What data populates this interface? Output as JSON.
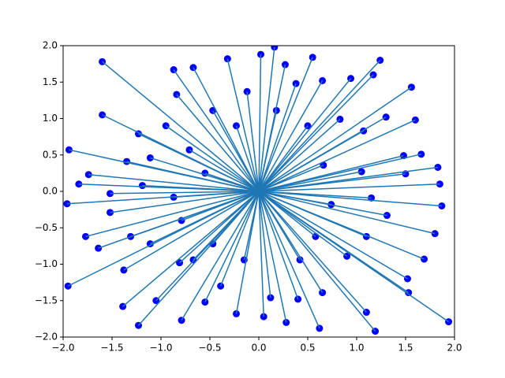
{
  "chart_data": {
    "type": "scatter",
    "x": [
      -1.6,
      -1.6,
      -1.94,
      -1.96,
      -1.95,
      -1.39,
      -1.23,
      -0.79,
      -1.05,
      -0.55,
      -0.23,
      0.02,
      0.16,
      0.27,
      0.55,
      1.24,
      1.56,
      1.6,
      1.83,
      1.85,
      1.87,
      1.8,
      1.69,
      1.52,
      1.53,
      1.94,
      1.19,
      1.1,
      0.62,
      0.28,
      0.05,
      -0.39,
      -0.81,
      -1.38,
      -1.64,
      -1.77,
      -1.84,
      -1.74,
      -1.35,
      -1.23,
      -0.95,
      -0.87,
      -0.67,
      -0.84,
      -0.32,
      -0.12,
      0.38,
      0.65,
      0.94,
      1.17,
      1.3,
      1.07,
      0.83,
      1.05,
      1.48,
      1.66,
      1.5,
      1.15,
      1.31,
      1.1,
      0.9,
      0.65,
      0.4,
      0.12,
      -0.67,
      -1.11,
      -1.31,
      -1.52,
      -1.52,
      -1.19,
      -1.11,
      -0.71,
      -0.47,
      -0.23,
      0.18,
      0.5,
      0.66,
      0.74,
      0.58,
      0.42,
      -0.15,
      -0.47,
      -0.79,
      -0.87,
      -0.55
    ],
    "y": [
      1.78,
      1.05,
      0.57,
      -0.17,
      -1.3,
      -1.58,
      -1.84,
      -1.77,
      -1.5,
      -1.52,
      -1.68,
      1.88,
      1.98,
      1.74,
      1.84,
      1.8,
      1.43,
      0.98,
      0.33,
      0.1,
      -0.2,
      -0.58,
      -0.93,
      -1.2,
      -1.39,
      -1.79,
      -1.92,
      -1.66,
      -1.88,
      -1.8,
      -1.72,
      -1.3,
      -0.98,
      -1.08,
      -0.78,
      -0.62,
      0.1,
      0.23,
      0.41,
      0.79,
      0.9,
      1.67,
      1.7,
      1.33,
      1.82,
      1.37,
      1.48,
      1.52,
      1.55,
      1.6,
      1.02,
      0.83,
      0.99,
      0.27,
      0.49,
      0.51,
      0.24,
      -0.09,
      -0.33,
      -0.62,
      -0.89,
      -1.39,
      -1.48,
      -1.46,
      -0.94,
      -0.72,
      -0.62,
      -0.29,
      -0.03,
      0.08,
      0.46,
      0.57,
      1.11,
      0.9,
      1.11,
      0.9,
      0.36,
      -0.18,
      -0.62,
      -0.94,
      -0.94,
      -0.72,
      -0.4,
      -0.08,
      0.25
    ],
    "color": "#0000ff",
    "line_color": "#1f77b4",
    "origin": [
      0,
      0
    ],
    "xlim": [
      -2,
      2
    ],
    "ylim": [
      -2,
      2
    ],
    "xticks": [
      {
        "value": -2,
        "label": "−2.0"
      },
      {
        "value": -1.5,
        "label": "−1.5"
      },
      {
        "value": -1,
        "label": "−1.0"
      },
      {
        "value": -0.5,
        "label": "−0.5"
      },
      {
        "value": 0,
        "label": "0.0"
      },
      {
        "value": 0.5,
        "label": "0.5"
      },
      {
        "value": 1,
        "label": "1.0"
      },
      {
        "value": 1.5,
        "label": "1.5"
      },
      {
        "value": 2,
        "label": "2.0"
      }
    ],
    "yticks": [
      {
        "value": -2,
        "label": "−2.0"
      },
      {
        "value": -1.5,
        "label": "−1.5"
      },
      {
        "value": -1,
        "label": "−1.0"
      },
      {
        "value": -0.5,
        "label": "−0.5"
      },
      {
        "value": 0,
        "label": "0.0"
      },
      {
        "value": 0.5,
        "label": "0.5"
      },
      {
        "value": 1,
        "label": "1.0"
      },
      {
        "value": 1.5,
        "label": "1.5"
      },
      {
        "value": 2,
        "label": "2.0"
      }
    ]
  }
}
